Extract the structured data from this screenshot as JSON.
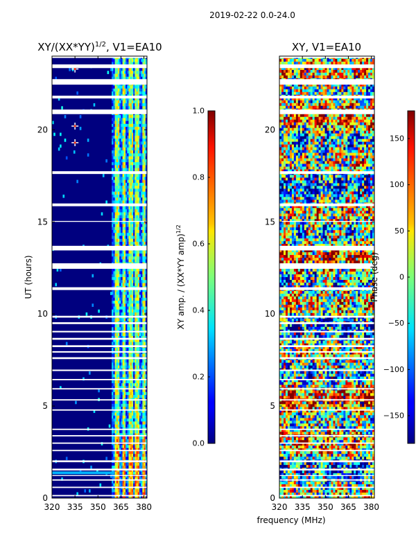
{
  "figure": {
    "suptitle": "2019-02-22 0.0-24.0"
  },
  "chart_data": [
    {
      "type": "heatmap",
      "title": "XY/(XX*YY)^{1/2}, V1=EA10",
      "title_main": "XY/(XX*YY)",
      "title_sup": "1/2",
      "title_tail": ", V1=EA10",
      "xlabel": "",
      "ylabel": "UT (hours)",
      "xlim": [
        320,
        382
      ],
      "ylim": [
        0,
        24
      ],
      "xticks": [
        320,
        335,
        350,
        365,
        380
      ],
      "yticks": [
        0,
        5,
        10,
        15,
        20
      ],
      "colorbar": {
        "label": "XY amp. / (XX*YY amp)^{1/2}",
        "label_main": "XY amp. / (XX*YY amp)",
        "label_sup": "1/2",
        "range": [
          0.0,
          1.0
        ],
        "ticks": [
          "0.0",
          "0.2",
          "0.4",
          "0.6",
          "0.8",
          "1.0"
        ],
        "tick_values": [
          0.0,
          0.2,
          0.4,
          0.6,
          0.8,
          1.0
        ]
      },
      "bright_channels_mhz": [
        [
          361.5,
          364
        ],
        [
          366.5,
          368
        ],
        [
          370.5,
          372.5
        ],
        [
          374.5,
          377
        ],
        [
          379,
          381
        ]
      ],
      "cursor_points": [
        {
          "x": 335,
          "y": 23.3
        },
        {
          "x": 335,
          "y": 20.2
        },
        {
          "x": 335,
          "y": 19.3
        }
      ]
    },
    {
      "type": "heatmap",
      "title": "XY, V1=EA10",
      "xlabel": "frequency (MHz)",
      "ylabel": "",
      "xlim": [
        320,
        382
      ],
      "ylim": [
        0,
        24
      ],
      "xticks": [
        320,
        335,
        350,
        365,
        380
      ],
      "yticks": [
        0,
        5,
        10,
        15,
        20
      ],
      "colorbar": {
        "label": "Phase (deg)",
        "range": [
          -180,
          180
        ],
        "ticks": [
          "150",
          "100",
          "50",
          "0",
          "−50",
          "−100",
          "−150"
        ],
        "tick_values": [
          150,
          100,
          50,
          0,
          -50,
          -100,
          -150
        ]
      }
    }
  ],
  "flagged_hours": [
    [
      23.9,
      24.0
    ],
    [
      23.35,
      23.55
    ],
    [
      22.45,
      22.75
    ],
    [
      21.7,
      21.85
    ],
    [
      20.85,
      21.1
    ],
    [
      17.6,
      17.75
    ],
    [
      15.85,
      16.0
    ],
    [
      15.0,
      15.05
    ],
    [
      13.45,
      13.7
    ],
    [
      12.45,
      12.75
    ],
    [
      11.3,
      11.45
    ],
    [
      9.8,
      9.9
    ],
    [
      9.45,
      9.55
    ],
    [
      9.0,
      9.08
    ],
    [
      8.6,
      8.7
    ],
    [
      8.2,
      8.3
    ],
    [
      7.9,
      7.98
    ],
    [
      7.55,
      7.65
    ],
    [
      6.9,
      6.98
    ],
    [
      6.4,
      6.47
    ],
    [
      5.9,
      5.97
    ],
    [
      5.3,
      5.37
    ],
    [
      4.75,
      4.82
    ],
    [
      3.7,
      3.77
    ],
    [
      3.35,
      3.42
    ],
    [
      2.95,
      3.02
    ],
    [
      2.55,
      2.62
    ],
    [
      1.95,
      2.05
    ],
    [
      1.5,
      1.6
    ],
    [
      1.2,
      1.25
    ],
    [
      0.95,
      1.02
    ],
    [
      0.55,
      0.62
    ],
    [
      0.1,
      0.17
    ]
  ]
}
